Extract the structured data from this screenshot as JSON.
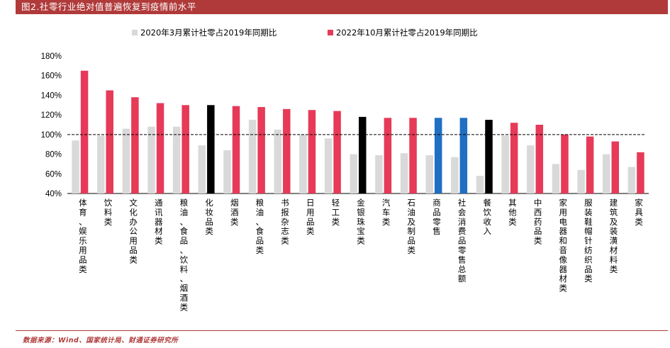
{
  "figure_title": "图2.社零行业绝对值普遍恢复到疫情前水平",
  "source_note": "数据来源：Wind、国家统计局、财通证券研究所",
  "colors": {
    "series_2020": "#d9d9d9",
    "series_2022": "#e63a58",
    "highlight_black": "#000000",
    "highlight_blue": "#1f6fc2",
    "title_bar": "#b03a3a"
  },
  "chart_data": {
    "type": "bar",
    "title": "",
    "xlabel": "",
    "ylabel": "",
    "ylim": [
      40,
      180
    ],
    "yticks": [
      "40%",
      "60%",
      "80%",
      "100%",
      "120%",
      "140%",
      "160%",
      "180%"
    ],
    "ytick_values": [
      40,
      60,
      80,
      100,
      120,
      140,
      160,
      180
    ],
    "reference_line": 100,
    "legend_placement": "top",
    "grid": false,
    "categories": [
      "体育、娱乐用品类",
      "饮料类",
      "文化办公用品类",
      "通讯器材类",
      "粮油、食品、饮料、烟酒类",
      "化妆品类",
      "烟酒类",
      "粮油、食品类",
      "书报杂志类",
      "日用品类",
      "轻工类",
      "金银珠宝类",
      "汽车类",
      "石油及制品类",
      "商品零售",
      "社会消费品零售总额",
      "餐饮收入",
      "其他类",
      "中西药品类",
      "家用电器和音像器材类",
      "服装鞋帽针纺织品类",
      "建筑及装潢材料类",
      "家具类"
    ],
    "series": [
      {
        "name": "2020年3月累计社零占2019年同期比",
        "values": [
          94,
          99,
          106,
          108,
          108,
          89,
          84,
          115,
          105,
          100,
          96,
          80,
          79,
          81,
          79,
          77,
          58,
          99,
          89,
          70,
          64,
          80,
          67
        ]
      },
      {
        "name": "2022年10月累计社零占2019年同期比",
        "values": [
          165,
          145,
          138,
          132,
          130,
          130,
          129,
          128,
          126,
          125,
          124,
          118,
          117,
          117,
          117,
          117,
          115,
          112,
          110,
          100,
          98,
          93,
          82
        ]
      }
    ],
    "highlights": {
      "black": [
        "化妆品类",
        "金银珠宝类",
        "餐饮收入"
      ],
      "blue": [
        "商品零售",
        "社会消费品零售总额"
      ]
    }
  }
}
